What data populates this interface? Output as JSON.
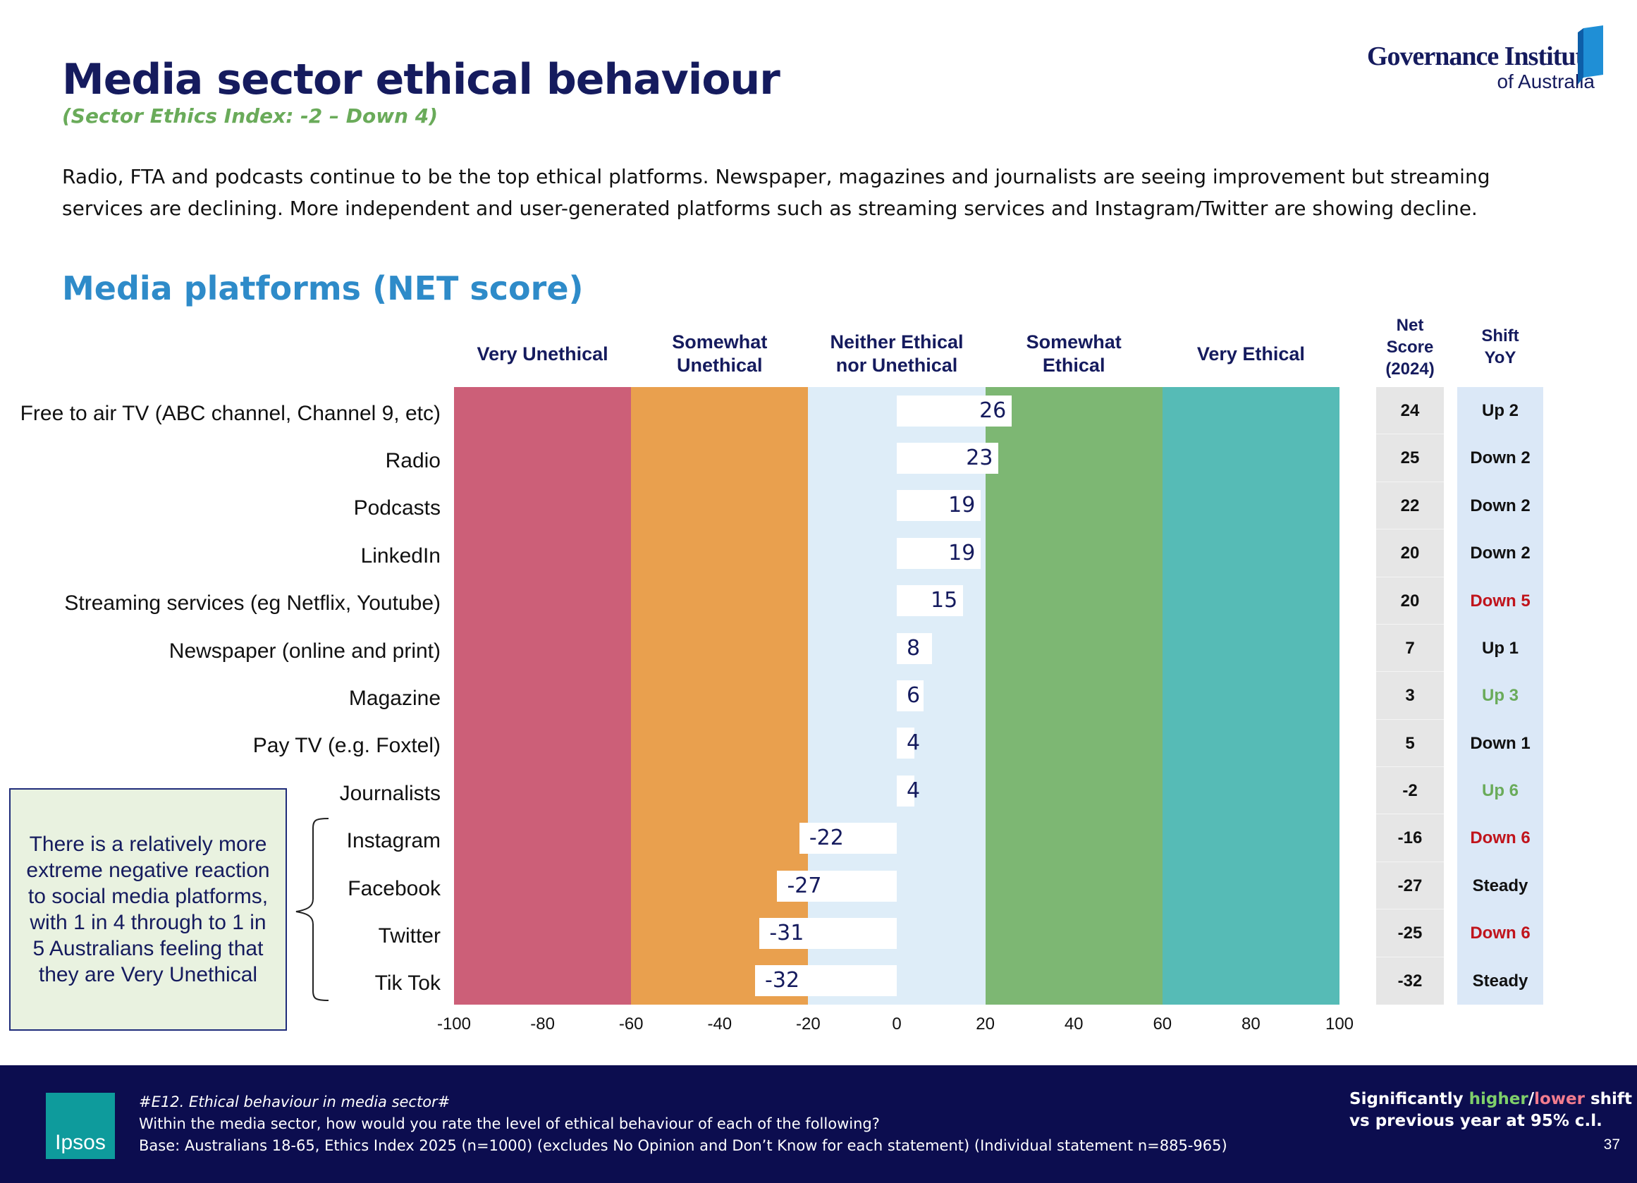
{
  "header": {
    "title": "Media sector ethical behaviour",
    "subtitle": "(Sector Ethics Index: -2 – Down 4)",
    "logo": {
      "name": "Governance Institute",
      "sub": "of Australia"
    },
    "description": "Radio, FTA and podcasts continue to be the top ethical platforms. Newspaper, magazines and journalists are seeing improvement but streaming services are declining. More independent and user-generated platforms such as streaming services and Instagram/Twitter are showing decline."
  },
  "chart_data": {
    "type": "bar",
    "title": "Media platforms (NET score)",
    "categories": [
      "Free to air TV (ABC channel, Channel 9, etc)",
      "Radio",
      "Podcasts",
      "LinkedIn",
      "Streaming services (eg Netflix, Youtube)",
      "Newspaper (online and print)",
      "Magazine",
      "Pay TV (e.g. Foxtel)",
      "Journalists",
      "Instagram",
      "Facebook",
      "Twitter",
      "Tik Tok"
    ],
    "values": [
      26,
      23,
      19,
      19,
      15,
      8,
      6,
      4,
      4,
      -22,
      -27,
      -31,
      -32
    ],
    "color": "#ffffff",
    "bands": [
      {
        "label": "Very Unethical",
        "from": -100,
        "to": -60,
        "color": "#cc5f78"
      },
      {
        "label": "Somewhat Unethical",
        "from": -60,
        "to": -20,
        "color": "#e9a04e"
      },
      {
        "label": "Neither Ethical nor Unethical",
        "from": -20,
        "to": 20,
        "color": "#deedf8"
      },
      {
        "label": "Somewhat Ethical",
        "from": 20,
        "to": 60,
        "color": "#7db773"
      },
      {
        "label": "Very Ethical",
        "from": 60,
        "to": 100,
        "color": "#56bbb6"
      }
    ],
    "xlim": [
      -100,
      100
    ],
    "xticks": [
      -100,
      -80,
      -60,
      -40,
      -20,
      0,
      20,
      40,
      60,
      80,
      100
    ],
    "net_score": {
      "header": "Net Score (2024)",
      "values": [
        24,
        25,
        22,
        20,
        20,
        7,
        3,
        5,
        -2,
        -16,
        -27,
        -25,
        -32
      ]
    },
    "shift": {
      "header": "Shift YoY",
      "values": [
        {
          "text": "Up 2"
        },
        {
          "text": "Down 2"
        },
        {
          "text": "Down 2"
        },
        {
          "text": "Down 2"
        },
        {
          "text": "Down 5",
          "sig": "lower"
        },
        {
          "text": "Up 1"
        },
        {
          "text": "Up 3",
          "sig": "higher"
        },
        {
          "text": "Down 1"
        },
        {
          "text": "Up 6",
          "sig": "higher"
        },
        {
          "text": "Down 6",
          "sig": "lower"
        },
        {
          "text": "Steady"
        },
        {
          "text": "Down 6",
          "sig": "lower"
        },
        {
          "text": "Steady"
        }
      ]
    }
  },
  "callout": "There is a relatively more extreme negative reaction to social media platforms, with 1 in 4 through to 1 in 5 Australians feeling that they are Very Unethical",
  "footer": {
    "code": "#E12. Ethical behaviour in media sector#",
    "question": "Within the media sector, how would you rate the level of ethical behaviour of each of the following?",
    "base": "Base: Australians 18-65, Ethics Index 2025 (n=1000) (excludes No Opinion and Don’t Know for each statement) (Individual statement n=885-965)",
    "logo": "Ipsos",
    "legend": {
      "prefix": "Significantly",
      "higher": "higher",
      "sep": "/",
      "lower": "lower",
      "suffix": "shift",
      "line2": "vs previous year at 95% c.l."
    },
    "page_number": "37"
  }
}
